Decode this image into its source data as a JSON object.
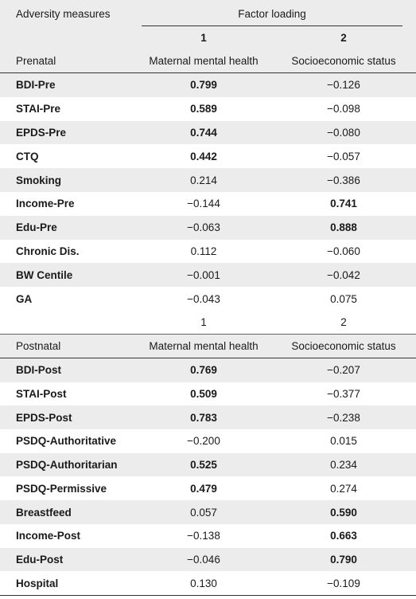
{
  "header": {
    "col0": "Adversity measures",
    "factor_loading": "Factor loading",
    "factor1_num": "1",
    "factor2_num": "2",
    "section_label": "Prenatal",
    "factor1_name": "Maternal mental health",
    "factor2_name": "Socioeconomic status"
  },
  "prenatal_rows": [
    {
      "measure": "BDI-Pre",
      "f1": "0.799",
      "f2": "−0.126",
      "f1_bold": true,
      "f2_bold": false
    },
    {
      "measure": "STAI-Pre",
      "f1": "0.589",
      "f2": "−0.098",
      "f1_bold": true,
      "f2_bold": false
    },
    {
      "measure": "EPDS-Pre",
      "f1": "0.744",
      "f2": "−0.080",
      "f1_bold": true,
      "f2_bold": false
    },
    {
      "measure": "CTQ",
      "f1": "0.442",
      "f2": "−0.057",
      "f1_bold": true,
      "f2_bold": false
    },
    {
      "measure": "Smoking",
      "f1": "0.214",
      "f2": "−0.386",
      "f1_bold": false,
      "f2_bold": false
    },
    {
      "measure": "Income-Pre",
      "f1": "−0.144",
      "f2": "0.741",
      "f1_bold": false,
      "f2_bold": true
    },
    {
      "measure": "Edu-Pre",
      "f1": "−0.063",
      "f2": "0.888",
      "f1_bold": false,
      "f2_bold": true
    },
    {
      "measure": "Chronic Dis.",
      "f1": "0.112",
      "f2": "−0.060",
      "f1_bold": false,
      "f2_bold": false
    },
    {
      "measure": "BW Centile",
      "f1": "−0.001",
      "f2": "−0.042",
      "f1_bold": false,
      "f2_bold": false
    },
    {
      "measure": "GA",
      "f1": "−0.043",
      "f2": "0.075",
      "f1_bold": false,
      "f2_bold": false
    }
  ],
  "postnatal_header": {
    "factor1_num": "1",
    "factor2_num": "2",
    "section_label": "Postnatal",
    "factor1_name": "Maternal mental health",
    "factor2_name": "Socioeconomic status"
  },
  "postnatal_rows": [
    {
      "measure": "BDI-Post",
      "f1": "0.769",
      "f2": "−0.207",
      "f1_bold": true,
      "f2_bold": false
    },
    {
      "measure": "STAI-Post",
      "f1": "0.509",
      "f2": "−0.377",
      "f1_bold": true,
      "f2_bold": false
    },
    {
      "measure": "EPDS-Post",
      "f1": "0.783",
      "f2": "−0.238",
      "f1_bold": true,
      "f2_bold": false
    },
    {
      "measure": "PSDQ-Authoritative",
      "f1": "−0.200",
      "f2": "0.015",
      "f1_bold": false,
      "f2_bold": false
    },
    {
      "measure": "PSDQ-Authoritarian",
      "f1": "0.525",
      "f2": "0.234",
      "f1_bold": true,
      "f2_bold": false
    },
    {
      "measure": "PSDQ-Permissive",
      "f1": "0.479",
      "f2": "0.274",
      "f1_bold": true,
      "f2_bold": false
    },
    {
      "measure": "Breastfeed",
      "f1": "0.057",
      "f2": "0.590",
      "f1_bold": false,
      "f2_bold": true
    },
    {
      "measure": "Income-Post",
      "f1": "−0.138",
      "f2": "0.663",
      "f1_bold": false,
      "f2_bold": true
    },
    {
      "measure": "Edu-Post",
      "f1": "−0.046",
      "f2": "0.790",
      "f1_bold": false,
      "f2_bold": true
    },
    {
      "measure": "Hospital",
      "f1": "0.130",
      "f2": "−0.109",
      "f1_bold": false,
      "f2_bold": false
    }
  ]
}
